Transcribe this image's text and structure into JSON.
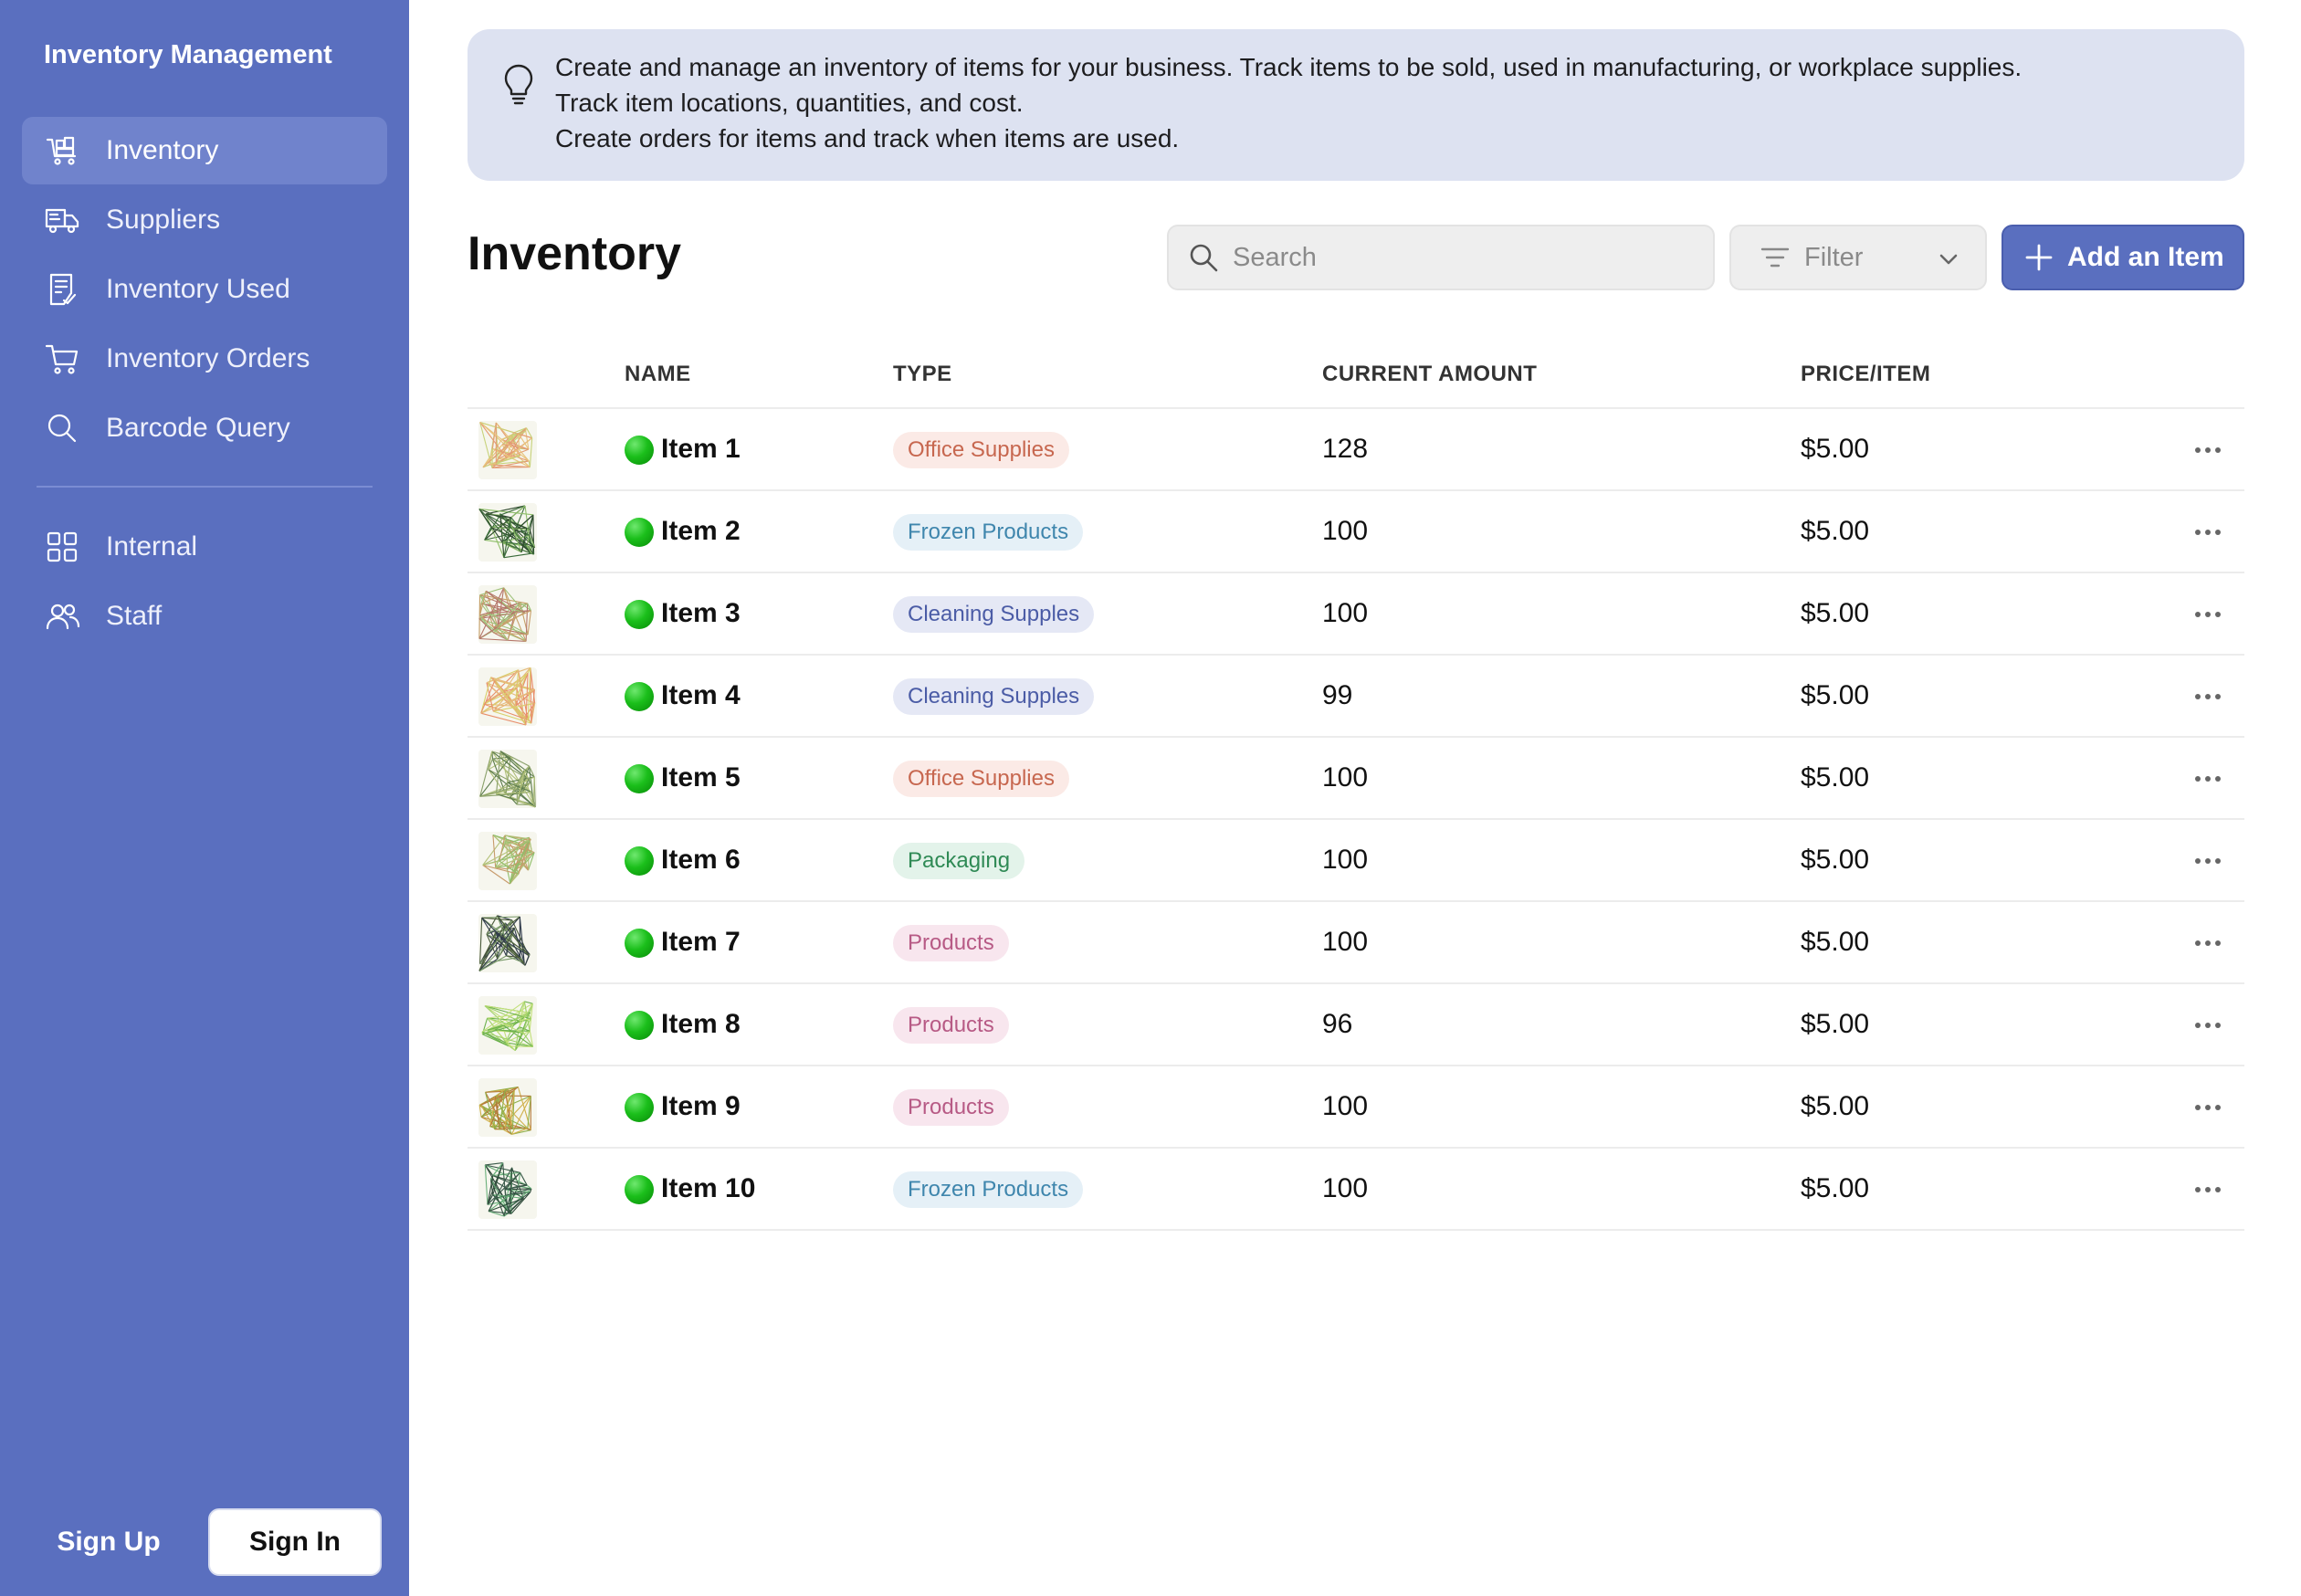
{
  "app": {
    "title": "Inventory Management"
  },
  "sidebar": {
    "items": [
      {
        "label": "Inventory",
        "icon": "inventory-cart-icon",
        "active": true
      },
      {
        "label": "Suppliers",
        "icon": "truck-icon",
        "active": false
      },
      {
        "label": "Inventory Used",
        "icon": "receipt-icon",
        "active": false
      },
      {
        "label": "Inventory Orders",
        "icon": "shopping-cart-icon",
        "active": false
      },
      {
        "label": "Barcode Query",
        "icon": "search-icon",
        "active": false
      }
    ],
    "secondary_items": [
      {
        "label": "Internal",
        "icon": "grid-icon"
      },
      {
        "label": "Staff",
        "icon": "users-icon"
      }
    ],
    "sign_up_label": "Sign Up",
    "sign_in_label": "Sign In"
  },
  "banner": {
    "icon": "lightbulb-icon",
    "lines": [
      "Create and manage an inventory of items for your business. Track items to be sold, used in manufacturing, or workplace supplies.",
      "Track item locations, quantities, and cost.",
      "Create orders for items and track when items are used."
    ]
  },
  "main": {
    "title": "Inventory",
    "search_placeholder": "Search",
    "filter_label": "Filter",
    "add_button_label": "Add an Item"
  },
  "table": {
    "columns": [
      "NAME",
      "TYPE",
      "CURRENT AMOUNT",
      "PRICE/ITEM"
    ],
    "rows": [
      {
        "name": "Item 1",
        "type": "Office Supplies",
        "amount": "128",
        "price": "$5.00"
      },
      {
        "name": "Item 2",
        "type": "Frozen Products",
        "amount": "100",
        "price": "$5.00"
      },
      {
        "name": "Item 3",
        "type": "Cleaning Supples",
        "amount": "100",
        "price": "$5.00"
      },
      {
        "name": "Item 4",
        "type": "Cleaning Supples",
        "amount": "99",
        "price": "$5.00"
      },
      {
        "name": "Item 5",
        "type": "Office Supplies",
        "amount": "100",
        "price": "$5.00"
      },
      {
        "name": "Item 6",
        "type": "Packaging",
        "amount": "100",
        "price": "$5.00"
      },
      {
        "name": "Item 7",
        "type": "Products",
        "amount": "100",
        "price": "$5.00"
      },
      {
        "name": "Item 8",
        "type": "Products",
        "amount": "96",
        "price": "$5.00"
      },
      {
        "name": "Item 9",
        "type": "Products",
        "amount": "100",
        "price": "$5.00"
      },
      {
        "name": "Item 10",
        "type": "Frozen Products",
        "amount": "100",
        "price": "$5.00"
      }
    ]
  },
  "colors": {
    "sidebar": "#5a6fbf",
    "sidebar_active": "#7083cc",
    "banner": "#dde2f1",
    "accent": "#5a6fbf",
    "status_dot": "#1bbf1b"
  }
}
